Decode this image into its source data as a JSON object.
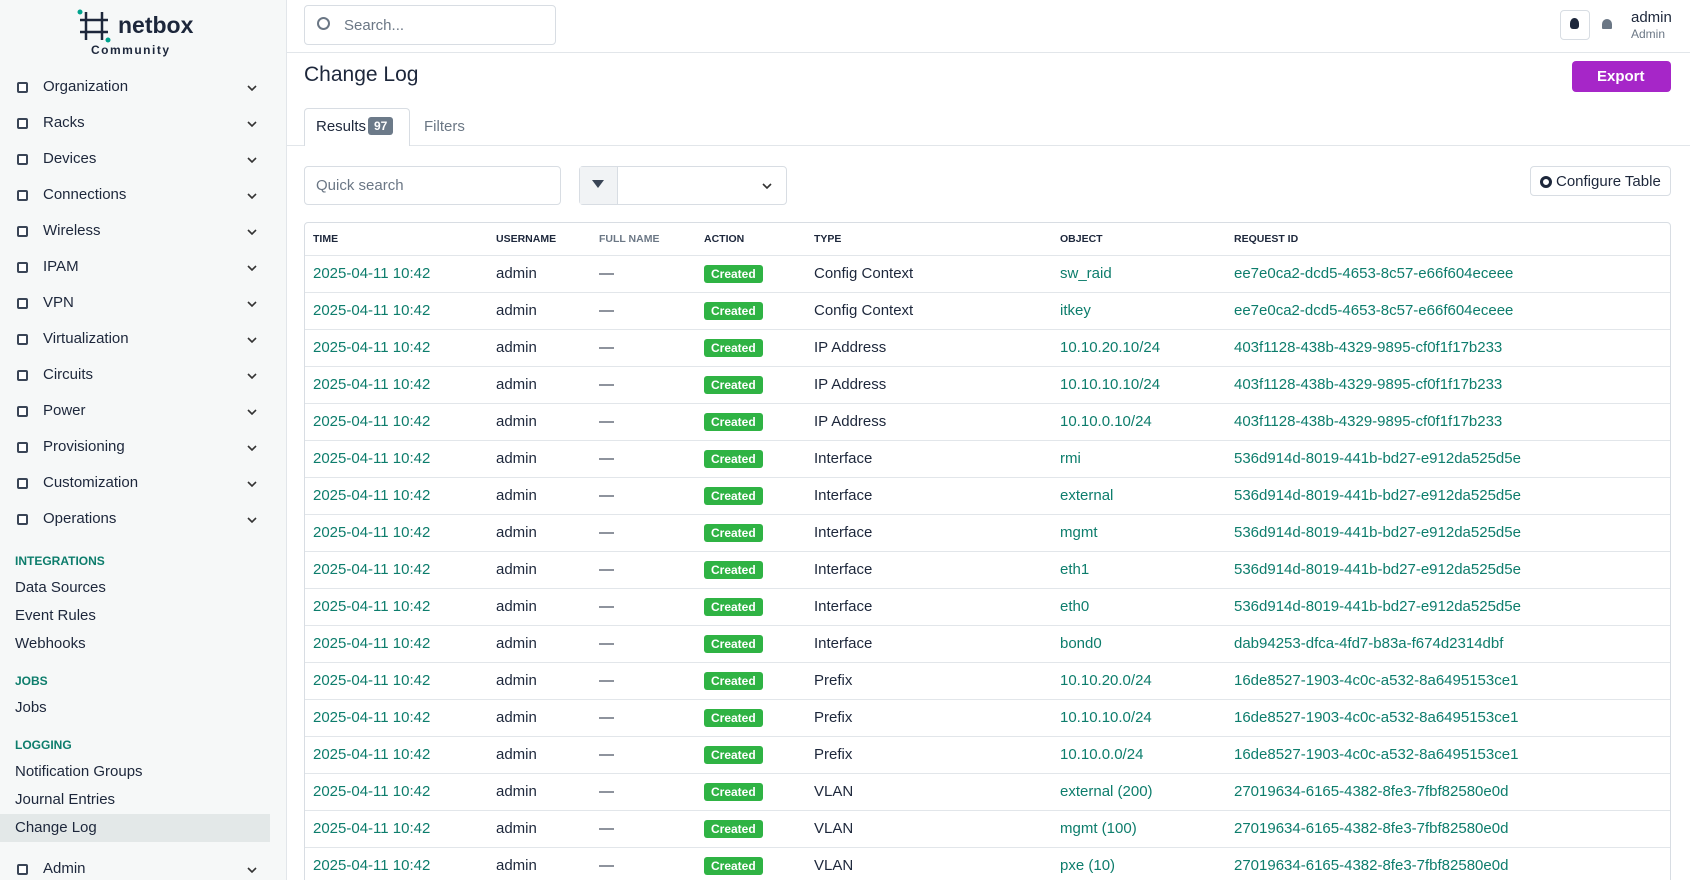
{
  "brand": {
    "name": "netbox",
    "edition": "Community"
  },
  "sidebar": {
    "menu": [
      "Organization",
      "Racks",
      "Devices",
      "Connections",
      "Wireless",
      "IPAM",
      "VPN",
      "Virtualization",
      "Circuits",
      "Power",
      "Provisioning",
      "Customization",
      "Operations"
    ],
    "sections": [
      {
        "title": "INTEGRATIONS",
        "items": [
          "Data Sources",
          "Event Rules",
          "Webhooks"
        ]
      },
      {
        "title": "JOBS",
        "items": [
          "Jobs"
        ]
      },
      {
        "title": "LOGGING",
        "items": [
          "Notification Groups",
          "Journal Entries",
          "Change Log"
        ]
      }
    ],
    "admin_menu": "Admin"
  },
  "header": {
    "search_placeholder": "Search...",
    "user": "admin",
    "role": "Admin"
  },
  "page": {
    "title": "Change Log",
    "export": "Export",
    "tabs": {
      "results": "Results",
      "count": 97,
      "filters": "Filters"
    },
    "quick_search": "Quick search",
    "configure": "Configure Table"
  },
  "table": {
    "columns": [
      "TIME",
      "USERNAME",
      "FULL NAME",
      "ACTION",
      "TYPE",
      "OBJECT",
      "REQUEST ID"
    ],
    "rows": [
      [
        "2025-04-11 10:42",
        "admin",
        "—",
        "Created",
        "Config Context",
        "sw_raid",
        "ee7e0ca2-dcd5-4653-8c57-e66f604eceee"
      ],
      [
        "2025-04-11 10:42",
        "admin",
        "—",
        "Created",
        "Config Context",
        "itkey",
        "ee7e0ca2-dcd5-4653-8c57-e66f604eceee"
      ],
      [
        "2025-04-11 10:42",
        "admin",
        "—",
        "Created",
        "IP Address",
        "10.10.20.10/24",
        "403f1128-438b-4329-9895-cf0f1f17b233"
      ],
      [
        "2025-04-11 10:42",
        "admin",
        "—",
        "Created",
        "IP Address",
        "10.10.10.10/24",
        "403f1128-438b-4329-9895-cf0f1f17b233"
      ],
      [
        "2025-04-11 10:42",
        "admin",
        "—",
        "Created",
        "IP Address",
        "10.10.0.10/24",
        "403f1128-438b-4329-9895-cf0f1f17b233"
      ],
      [
        "2025-04-11 10:42",
        "admin",
        "—",
        "Created",
        "Interface",
        "rmi",
        "536d914d-8019-441b-bd27-e912da525d5e"
      ],
      [
        "2025-04-11 10:42",
        "admin",
        "—",
        "Created",
        "Interface",
        "external",
        "536d914d-8019-441b-bd27-e912da525d5e"
      ],
      [
        "2025-04-11 10:42",
        "admin",
        "—",
        "Created",
        "Interface",
        "mgmt",
        "536d914d-8019-441b-bd27-e912da525d5e"
      ],
      [
        "2025-04-11 10:42",
        "admin",
        "—",
        "Created",
        "Interface",
        "eth1",
        "536d914d-8019-441b-bd27-e912da525d5e"
      ],
      [
        "2025-04-11 10:42",
        "admin",
        "—",
        "Created",
        "Interface",
        "eth0",
        "536d914d-8019-441b-bd27-e912da525d5e"
      ],
      [
        "2025-04-11 10:42",
        "admin",
        "—",
        "Created",
        "Interface",
        "bond0",
        "dab94253-dfca-4fd7-b83a-f674d2314dbf"
      ],
      [
        "2025-04-11 10:42",
        "admin",
        "—",
        "Created",
        "Prefix",
        "10.10.20.0/24",
        "16de8527-1903-4c0c-a532-8a6495153ce1"
      ],
      [
        "2025-04-11 10:42",
        "admin",
        "—",
        "Created",
        "Prefix",
        "10.10.10.0/24",
        "16de8527-1903-4c0c-a532-8a6495153ce1"
      ],
      [
        "2025-04-11 10:42",
        "admin",
        "—",
        "Created",
        "Prefix",
        "10.10.0.0/24",
        "16de8527-1903-4c0c-a532-8a6495153ce1"
      ],
      [
        "2025-04-11 10:42",
        "admin",
        "—",
        "Created",
        "VLAN",
        "external (200)",
        "27019634-6165-4382-8fe3-7fbf82580e0d"
      ],
      [
        "2025-04-11 10:42",
        "admin",
        "—",
        "Created",
        "VLAN",
        "mgmt (100)",
        "27019634-6165-4382-8fe3-7fbf82580e0d"
      ],
      [
        "2025-04-11 10:42",
        "admin",
        "—",
        "Created",
        "VLAN",
        "pxe (10)",
        "27019634-6165-4382-8fe3-7fbf82580e0d"
      ]
    ]
  }
}
